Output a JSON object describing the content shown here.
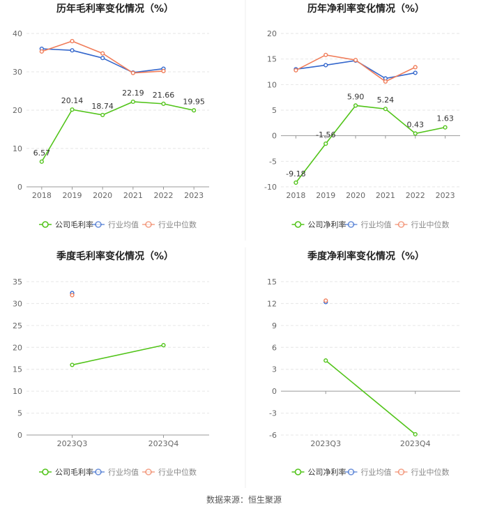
{
  "colors": {
    "company": "#52c41a",
    "industry_avg": "#3366cc",
    "industry_median": "#f07d5a",
    "axis_text": "#666666",
    "grid": "#e6e6e6",
    "title": "#222222"
  },
  "footer": {
    "source": "数据来源：恒生聚源"
  },
  "chart_data": [
    {
      "id": "annual-gross",
      "type": "line",
      "title": "历年毛利率变化情况（%）",
      "categories": [
        "2018",
        "2019",
        "2020",
        "2021",
        "2022",
        "2023"
      ],
      "ylim": [
        0,
        40
      ],
      "yticks": [
        0,
        10,
        20,
        30,
        40
      ],
      "series": [
        {
          "name": "公司毛利率",
          "key": "company",
          "values": [
            6.57,
            20.14,
            18.74,
            22.19,
            21.66,
            19.95
          ],
          "labels": [
            "6.57",
            "20.14",
            "18.74",
            "22.19",
            "21.66",
            "19.95"
          ]
        },
        {
          "name": "行业均值",
          "key": "industry_avg",
          "values": [
            36.0,
            35.6,
            33.6,
            29.8,
            30.8,
            null
          ]
        },
        {
          "name": "行业中位数",
          "key": "industry_median",
          "values": [
            35.3,
            38.0,
            34.8,
            29.7,
            30.2,
            null
          ]
        }
      ]
    },
    {
      "id": "annual-net",
      "type": "line",
      "title": "历年净利率变化情况（%）",
      "categories": [
        "2018",
        "2019",
        "2020",
        "2021",
        "2022",
        "2023"
      ],
      "ylim": [
        -10,
        20
      ],
      "yticks": [
        -10,
        -5,
        0,
        5,
        10,
        15,
        20
      ],
      "series": [
        {
          "name": "公司净利率",
          "key": "company",
          "values": [
            -9.18,
            -1.56,
            5.9,
            5.24,
            0.43,
            1.63
          ],
          "labels": [
            "-9.18",
            "-1.56",
            "5.90",
            "5.24",
            "0.43",
            "1.63"
          ]
        },
        {
          "name": "行业均值",
          "key": "industry_avg",
          "values": [
            13.0,
            13.8,
            14.7,
            11.2,
            12.3,
            null
          ]
        },
        {
          "name": "行业中位数",
          "key": "industry_median",
          "values": [
            12.8,
            15.8,
            14.8,
            10.6,
            13.4,
            null
          ]
        }
      ]
    },
    {
      "id": "quarterly-gross",
      "type": "line",
      "title": "季度毛利率变化情况（%）",
      "categories": [
        "2023Q3",
        "2023Q4"
      ],
      "ylim": [
        0,
        35
      ],
      "yticks": [
        0,
        5,
        10,
        15,
        20,
        25,
        30,
        35
      ],
      "series": [
        {
          "name": "公司毛利率",
          "key": "company",
          "values": [
            16.0,
            20.5
          ]
        },
        {
          "name": "行业均值",
          "key": "industry_avg",
          "values": [
            32.4,
            null
          ]
        },
        {
          "name": "行业中位数",
          "key": "industry_median",
          "values": [
            31.9,
            null
          ]
        }
      ]
    },
    {
      "id": "quarterly-net",
      "type": "line",
      "title": "季度净利率变化情况（%）",
      "categories": [
        "2023Q3",
        "2023Q4"
      ],
      "ylim": [
        -6,
        15
      ],
      "yticks": [
        -6,
        -3,
        0,
        3,
        6,
        9,
        12,
        15
      ],
      "series": [
        {
          "name": "公司净利率",
          "key": "company",
          "values": [
            4.2,
            -5.9
          ]
        },
        {
          "name": "行业均值",
          "key": "industry_avg",
          "values": [
            12.2,
            null
          ]
        },
        {
          "name": "行业中位数",
          "key": "industry_median",
          "values": [
            12.4,
            null
          ]
        }
      ]
    }
  ]
}
